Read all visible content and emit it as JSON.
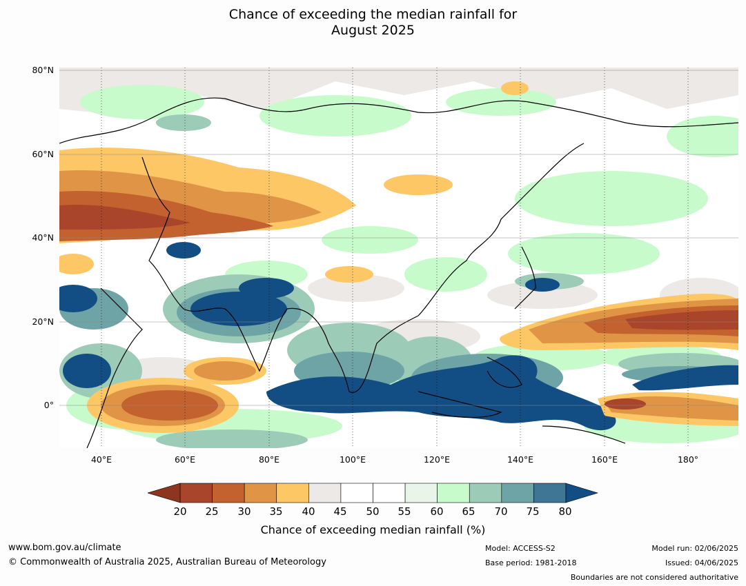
{
  "title": {
    "line1": "Chance of exceeding the median rainfall for",
    "line2": "August 2025"
  },
  "map": {
    "lat_labels": [
      "80°N",
      "60°N",
      "40°N",
      "20°N",
      "0°"
    ],
    "lon_labels": [
      "40°E",
      "60°E",
      "80°E",
      "100°E",
      "120°E",
      "140°E",
      "160°E",
      "180°"
    ],
    "extent": {
      "lon_min": 30,
      "lon_max": 192,
      "lat_min": -10,
      "lat_max": 80
    }
  },
  "colorbar": {
    "ticks": [
      "20",
      "25",
      "30",
      "35",
      "40",
      "45",
      "50",
      "55",
      "60",
      "65",
      "70",
      "75",
      "80"
    ],
    "colors": [
      "#a9452a",
      "#c4622f",
      "#e09546",
      "#fdc766",
      "#ece9e6",
      "#ffffff",
      "#ffffff",
      "#e8f5e8",
      "#c8fbcc",
      "#9ccbb8",
      "#6ea4a6",
      "#3f7595"
    ],
    "under_color": "#8e3520",
    "over_color": "#124e84",
    "label": "Chance of exceeding median rainfall (%)"
  },
  "footer": {
    "website": "www.bom.gov.au/climate",
    "copyright": "© Commonwealth of Australia 2025, Australian Bureau of Meteorology",
    "model": "Model: ACCESS-S2",
    "base_period": "Base period: 1981-2018",
    "model_run": "Model run: 02/06/2025",
    "issued": "Issued: 04/06/2025",
    "disclaimer": "Boundaries are not considered authoritative"
  }
}
